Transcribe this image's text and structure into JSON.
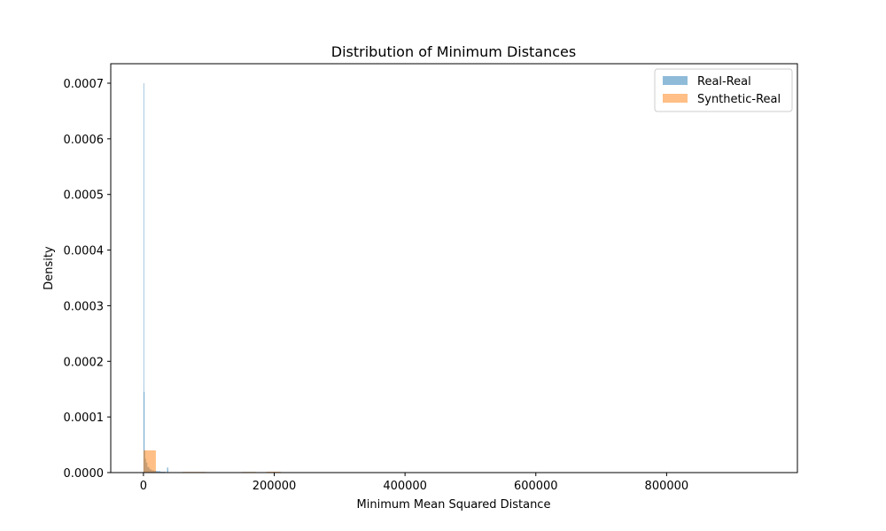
{
  "chart_data": {
    "type": "histogram",
    "title": "Distribution of Minimum Distances",
    "xlabel": "Minimum Mean Squared Distance",
    "ylabel": "Density",
    "xlim": [
      -50000,
      1000000
    ],
    "ylim": [
      0,
      0.000735
    ],
    "xticks": [
      0,
      200000,
      400000,
      600000,
      800000
    ],
    "xtick_labels": [
      "0",
      "200000",
      "400000",
      "600000",
      "800000"
    ],
    "yticks": [
      0,
      0.0001,
      0.0002,
      0.0003,
      0.0004,
      0.0005,
      0.0006,
      0.0007
    ],
    "ytick_labels": [
      "0.0000",
      "0.0001",
      "0.0002",
      "0.0003",
      "0.0004",
      "0.0005",
      "0.0006",
      "0.0007"
    ],
    "grid": false,
    "legend_position": "top-right",
    "series": [
      {
        "name": "Real-Real",
        "color": "#1f77b4",
        "alpha": 0.5,
        "bins": [
          [
            0,
            700,
            0.0007
          ],
          [
            700,
            1400,
            0.000145
          ],
          [
            1400,
            2500,
            4e-05
          ],
          [
            2500,
            4000,
            2.5e-05
          ],
          [
            4000,
            6000,
            1.8e-05
          ],
          [
            6000,
            9000,
            1e-05
          ],
          [
            9000,
            12000,
            6e-06
          ],
          [
            12000,
            16000,
            4e-06
          ],
          [
            16000,
            20000,
            3e-06
          ],
          [
            20000,
            26000,
            2.5e-06
          ],
          [
            26000,
            34000,
            1.5e-06
          ],
          [
            36000,
            38000,
            9e-06
          ]
        ]
      },
      {
        "name": "Synthetic-Real",
        "color": "#ff7f0e",
        "alpha": 0.5,
        "bins": [
          [
            0,
            19000,
            4e-05
          ],
          [
            60000,
            96000,
            1.2e-06
          ],
          [
            150000,
            172000,
            1.2e-06
          ],
          [
            188000,
            210000,
            1.5e-06
          ]
        ]
      }
    ]
  }
}
